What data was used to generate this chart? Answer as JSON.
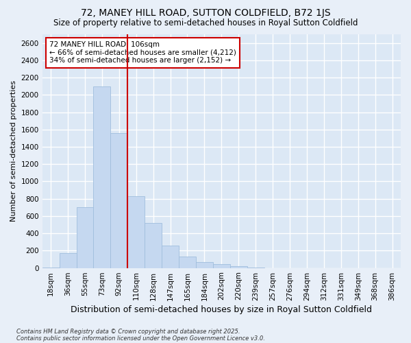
{
  "title": "72, MANEY HILL ROAD, SUTTON COLDFIELD, B72 1JS",
  "subtitle": "Size of property relative to semi-detached houses in Royal Sutton Coldfield",
  "xlabel": "Distribution of semi-detached houses by size in Royal Sutton Coldfield",
  "ylabel": "Number of semi-detached properties",
  "categories": [
    "18sqm",
    "36sqm",
    "55sqm",
    "73sqm",
    "92sqm",
    "110sqm",
    "128sqm",
    "147sqm",
    "165sqm",
    "184sqm",
    "202sqm",
    "220sqm",
    "239sqm",
    "257sqm",
    "276sqm",
    "294sqm",
    "312sqm",
    "331sqm",
    "349sqm",
    "368sqm",
    "386sqm"
  ],
  "values": [
    5,
    170,
    700,
    2100,
    1560,
    830,
    520,
    260,
    130,
    70,
    45,
    20,
    5,
    0,
    0,
    0,
    0,
    0,
    0,
    0,
    0
  ],
  "bar_color": "#c5d8f0",
  "bar_edge_color": "#a0bedd",
  "vline_position": 4.5,
  "vline_color": "#cc0000",
  "ylim": [
    0,
    2700
  ],
  "yticks": [
    0,
    200,
    400,
    600,
    800,
    1000,
    1200,
    1400,
    1600,
    1800,
    2000,
    2200,
    2400,
    2600
  ],
  "annotation_title": "72 MANEY HILL ROAD: 106sqm",
  "annotation_line1": "← 66% of semi-detached houses are smaller (4,212)",
  "annotation_line2": "34% of semi-detached houses are larger (2,152) →",
  "annotation_box_color": "#cc0000",
  "footer_line1": "Contains HM Land Registry data © Crown copyright and database right 2025.",
  "footer_line2": "Contains public sector information licensed under the Open Government Licence v3.0.",
  "fig_bg_color": "#e8eff8",
  "plot_bg_color": "#dce8f5",
  "title_fontsize": 10,
  "subtitle_fontsize": 8.5,
  "ylabel_fontsize": 8,
  "xlabel_fontsize": 9,
  "tick_fontsize": 7.5,
  "ann_fontsize": 7.5,
  "footer_fontsize": 6
}
